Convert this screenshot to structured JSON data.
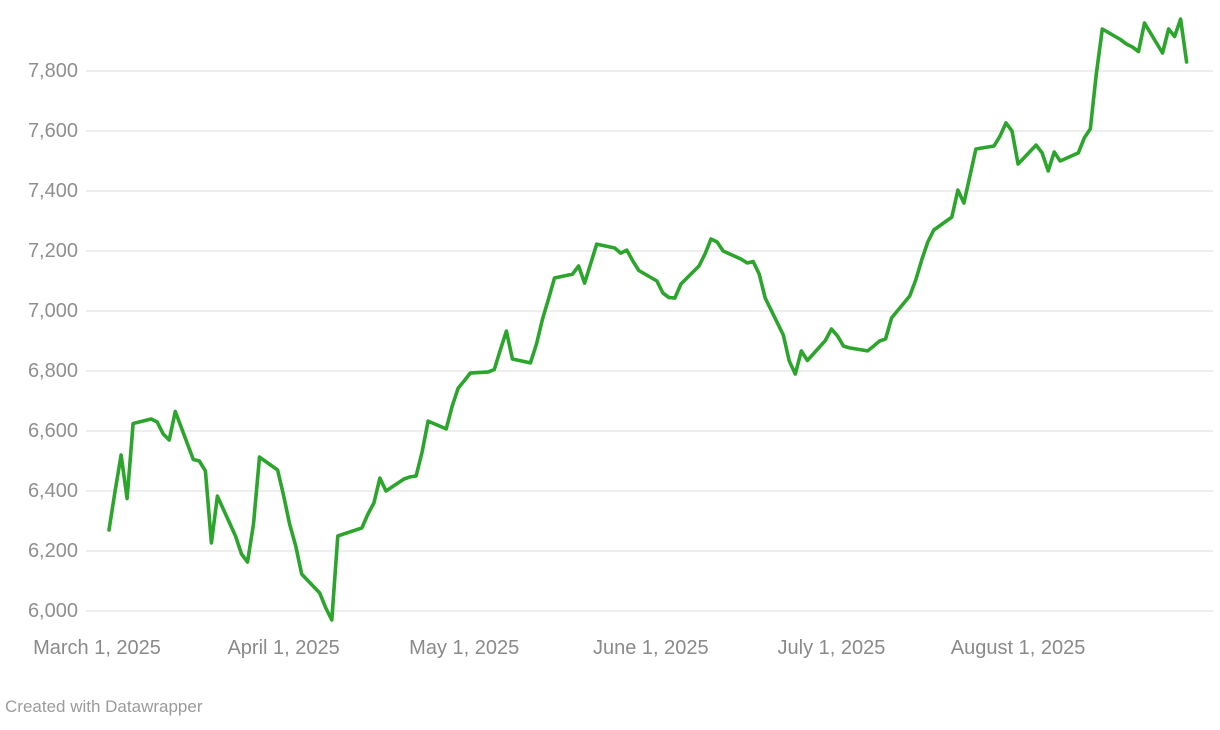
{
  "footer": {
    "credit": "Created with Datawrapper"
  },
  "chart_data": {
    "type": "line",
    "title": "",
    "xlabel": "",
    "ylabel": "",
    "legend": "none",
    "grid": "horizontal",
    "palette": {
      "line_color": "#2BA52B",
      "grid_color": "#dedede",
      "axis_text_color": "#8f8f8f",
      "background": "#ffffff"
    },
    "y_axis": {
      "ylim": [
        5950,
        8040
      ],
      "tick_values": [
        6000,
        6200,
        6400,
        6600,
        6800,
        7000,
        7200,
        7400,
        7600,
        7800
      ],
      "tick_labels": [
        "6,000",
        "6,200",
        "6,400",
        "6,600",
        "6,800",
        "7,000",
        "7,200",
        "7,400",
        "7,600",
        "7,800"
      ]
    },
    "x_axis": {
      "range": [
        "2025-03-01",
        "2025-08-31"
      ],
      "tick_dates": [
        "2025-03-01",
        "2025-04-01",
        "2025-05-01",
        "2025-06-01",
        "2025-07-01",
        "2025-08-01"
      ],
      "tick_labels": [
        "March 1, 2025",
        "April 1, 2025",
        "May 1, 2025",
        "June 1, 2025",
        "July 1, 2025",
        "August 1, 2025"
      ]
    },
    "series": [
      {
        "name": "value",
        "dates": [
          "2025-03-03",
          "2025-03-04",
          "2025-03-05",
          "2025-03-06",
          "2025-03-07",
          "2025-03-10",
          "2025-03-11",
          "2025-03-12",
          "2025-03-13",
          "2025-03-14",
          "2025-03-17",
          "2025-03-18",
          "2025-03-19",
          "2025-03-20",
          "2025-03-21",
          "2025-03-24",
          "2025-03-25",
          "2025-03-26",
          "2025-03-27",
          "2025-03-28",
          "2025-03-31",
          "2025-04-01",
          "2025-04-02",
          "2025-04-03",
          "2025-04-04",
          "2025-04-07",
          "2025-04-08",
          "2025-04-09",
          "2025-04-10",
          "2025-04-11",
          "2025-04-14",
          "2025-04-15",
          "2025-04-16",
          "2025-04-17",
          "2025-04-18",
          "2025-04-21",
          "2025-04-22",
          "2025-04-23",
          "2025-04-24",
          "2025-04-25",
          "2025-04-28",
          "2025-04-29",
          "2025-04-30",
          "2025-05-01",
          "2025-05-02",
          "2025-05-05",
          "2025-05-06",
          "2025-05-07",
          "2025-05-08",
          "2025-05-09",
          "2025-05-12",
          "2025-05-13",
          "2025-05-14",
          "2025-05-15",
          "2025-05-16",
          "2025-05-19",
          "2025-05-20",
          "2025-05-21",
          "2025-05-22",
          "2025-05-23",
          "2025-05-26",
          "2025-05-27",
          "2025-05-28",
          "2025-05-29",
          "2025-05-30",
          "2025-06-02",
          "2025-06-03",
          "2025-06-04",
          "2025-06-05",
          "2025-06-06",
          "2025-06-09",
          "2025-06-10",
          "2025-06-11",
          "2025-06-12",
          "2025-06-13",
          "2025-06-16",
          "2025-06-17",
          "2025-06-18",
          "2025-06-19",
          "2025-06-20",
          "2025-06-23",
          "2025-06-24",
          "2025-06-25",
          "2025-06-26",
          "2025-06-27",
          "2025-06-30",
          "2025-07-01",
          "2025-07-02",
          "2025-07-03",
          "2025-07-04",
          "2025-07-07",
          "2025-07-08",
          "2025-07-09",
          "2025-07-10",
          "2025-07-11",
          "2025-07-14",
          "2025-07-15",
          "2025-07-16",
          "2025-07-17",
          "2025-07-18",
          "2025-07-21",
          "2025-07-22",
          "2025-07-23",
          "2025-07-24",
          "2025-07-25",
          "2025-07-28",
          "2025-07-29",
          "2025-07-30",
          "2025-07-31",
          "2025-08-01",
          "2025-08-04",
          "2025-08-05",
          "2025-08-06",
          "2025-08-07",
          "2025-08-08",
          "2025-08-11",
          "2025-08-12",
          "2025-08-13",
          "2025-08-14",
          "2025-08-15",
          "2025-08-18",
          "2025-08-19",
          "2025-08-20",
          "2025-08-21",
          "2025-08-22",
          "2025-08-25",
          "2025-08-26",
          "2025-08-27",
          "2025-08-28",
          "2025-08-29"
        ],
        "values": [
          6270,
          6400,
          6520,
          6375,
          6625,
          6640,
          6630,
          6590,
          6570,
          6665,
          6505,
          6500,
          6467,
          6227,
          6383,
          6250,
          6190,
          6163,
          6290,
          6513,
          6470,
          6385,
          6290,
          6217,
          6123,
          6060,
          6010,
          5970,
          6250,
          6257,
          6277,
          6323,
          6360,
          6443,
          6400,
          6440,
          6447,
          6450,
          6530,
          6633,
          6607,
          6683,
          6743,
          6767,
          6793,
          6797,
          6805,
          6870,
          6933,
          6840,
          6827,
          6890,
          6973,
          7040,
          7110,
          7123,
          7150,
          7093,
          7157,
          7223,
          7210,
          7193,
          7203,
          7167,
          7135,
          7100,
          7060,
          7045,
          7043,
          7090,
          7150,
          7190,
          7240,
          7230,
          7200,
          7173,
          7160,
          7165,
          7123,
          7043,
          6920,
          6833,
          6790,
          6867,
          6835,
          6902,
          6940,
          6917,
          6883,
          6877,
          6867,
          6883,
          6900,
          6907,
          6977,
          7050,
          7103,
          7170,
          7230,
          7270,
          7313,
          7403,
          7360,
          7450,
          7540,
          7550,
          7583,
          7627,
          7600,
          7490,
          7553,
          7527,
          7467,
          7530,
          7500,
          7527,
          7577,
          7607,
          7790,
          7940,
          7905,
          7890,
          7880,
          7865,
          7960,
          7860,
          7940,
          7915,
          7973,
          7830
        ]
      }
    ]
  }
}
